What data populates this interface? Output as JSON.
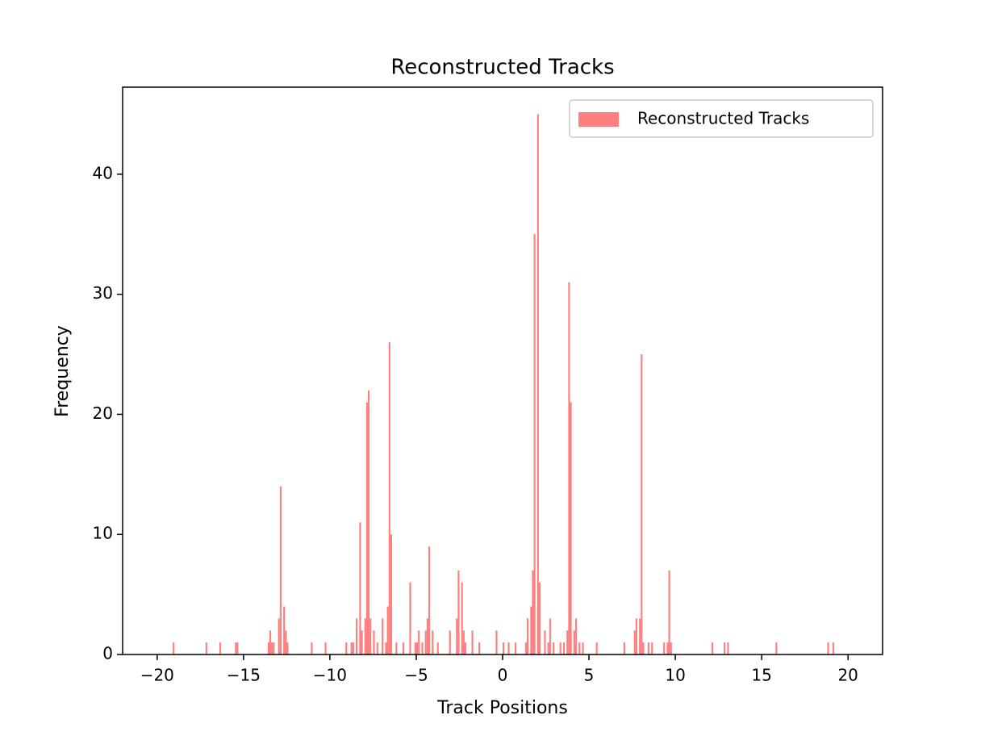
{
  "chart_data": {
    "type": "histogram",
    "title": "Reconstructed Tracks",
    "x_label": "Track Positions",
    "y_label": "Frequency",
    "series": [
      {
        "name": "Reconstructed Tracks",
        "color": "#ff7f7f",
        "bins": [
          -20,
          -19.9,
          -19.8,
          -19.7,
          -19.6,
          -19.5,
          -19.4,
          -19.3,
          -19.2,
          -19.1,
          -19,
          -18.9,
          -18.8,
          -18.7,
          -18.6,
          -18.5,
          -18.4,
          -18.3,
          -18.2,
          -18.1,
          -18,
          -17.9,
          -17.8,
          -17.7,
          -17.6,
          -17.5,
          -17.4,
          -17.3,
          -17.2,
          -17.1,
          -17,
          -16.9,
          -16.8,
          -16.7,
          -16.6,
          -16.5,
          -16.4,
          -16.3,
          -16.2,
          -16.1,
          -16,
          -15.9,
          -15.8,
          -15.7,
          -15.6,
          -15.5,
          -15.4,
          -15.3,
          -15.2,
          -15.1,
          -15,
          -14.9,
          -14.8,
          -14.7,
          -14.6,
          -14.5,
          -14.4,
          -14.3,
          -14.2,
          -14.1,
          -14,
          -13.9,
          -13.8,
          -13.7,
          -13.6,
          -13.5,
          -13.4,
          -13.3,
          -13.2,
          -13.1,
          -13,
          -12.9,
          -12.8,
          -12.7,
          -12.6,
          -12.5,
          -12.4,
          -12.3,
          -12.2,
          -12.1,
          -12,
          -11.9,
          -11.8,
          -11.7,
          -11.6,
          -11.5,
          -11.4,
          -11.3,
          -11.2,
          -11.1,
          -11,
          -10.9,
          -10.8,
          -10.7,
          -10.6,
          -10.5,
          -10.4,
          -10.3,
          -10.2,
          -10.1,
          -10,
          -9.9,
          -9.8,
          -9.7,
          -9.6,
          -9.5,
          -9.4,
          -9.3,
          -9.2,
          -9.1,
          -9,
          -8.9,
          -8.8,
          -8.7,
          -8.6,
          -8.5,
          -8.4,
          -8.3,
          -8.2,
          -8.1,
          -8,
          -7.9,
          -7.8,
          -7.7,
          -7.6,
          -7.5,
          -7.4,
          -7.3,
          -7.2,
          -7.1,
          -7,
          -6.9,
          -6.8,
          -6.7,
          -6.6,
          -6.5,
          -6.4,
          -6.3,
          -6.2,
          -6.1,
          -6,
          -5.9,
          -5.8,
          -5.7,
          -5.6,
          -5.5,
          -5.4,
          -5.3,
          -5.2,
          -5.1,
          -5,
          -4.9,
          -4.8,
          -4.7,
          -4.6,
          -4.5,
          -4.4,
          -4.3,
          -4.2,
          -4.1,
          -4,
          -3.9,
          -3.8,
          -3.7,
          -3.6,
          -3.5,
          -3.4,
          -3.3,
          -3.2,
          -3.1,
          -3,
          -2.9,
          -2.8,
          -2.7,
          -2.6,
          -2.5,
          -2.4,
          -2.3,
          -2.2,
          -2.1,
          -2,
          -1.9,
          -1.8,
          -1.7,
          -1.6,
          -1.5,
          -1.4,
          -1.3,
          -1.2,
          -1.1,
          -1,
          -0.9,
          -0.8,
          -0.7,
          -0.6,
          -0.5,
          -0.4,
          -0.3,
          -0.2,
          -0.1,
          0,
          0.1,
          0.2,
          0.3,
          0.4,
          0.5,
          0.6,
          0.7,
          0.8,
          0.9,
          1,
          1.1,
          1.2,
          1.3,
          1.4,
          1.5,
          1.6,
          1.7,
          1.8,
          1.9,
          2,
          2.1,
          2.2,
          2.3,
          2.4,
          2.5,
          2.6,
          2.7,
          2.8,
          2.9,
          3,
          3.1,
          3.2,
          3.3,
          3.4,
          3.5,
          3.6,
          3.7,
          3.8,
          3.9,
          4,
          4.1,
          4.2,
          4.3,
          4.4,
          4.5,
          4.6,
          4.7,
          4.8,
          4.9,
          5,
          5.1,
          5.2,
          5.3,
          5.4,
          5.5,
          5.6,
          5.7,
          5.8,
          5.9,
          6,
          6.1,
          6.2,
          6.3,
          6.4,
          6.5,
          6.6,
          6.7,
          6.8,
          6.9,
          7,
          7.1,
          7.2,
          7.3,
          7.4,
          7.5,
          7.6,
          7.7,
          7.8,
          7.9,
          8,
          8.1,
          8.2,
          8.3,
          8.4,
          8.5,
          8.6,
          8.7,
          8.8,
          8.9,
          9,
          9.1,
          9.2,
          9.3,
          9.4,
          9.5,
          9.6,
          9.7,
          9.8,
          9.9,
          10,
          10.1,
          10.2,
          10.3,
          10.4,
          10.5,
          10.6,
          10.7,
          10.8,
          10.9,
          11,
          11.1,
          11.2,
          11.3,
          11.4,
          11.5,
          11.6,
          11.7,
          11.8,
          11.9,
          12,
          12.1,
          12.2,
          12.3,
          12.4,
          12.5,
          12.6,
          12.7,
          12.8,
          12.9,
          13,
          13.1,
          13.2,
          13.3,
          13.4,
          13.5,
          13.6,
          13.7,
          13.8,
          13.9,
          14,
          14.1,
          14.2,
          14.3,
          14.4,
          14.5,
          14.6,
          14.7,
          14.8,
          14.9,
          15,
          15.1,
          15.2,
          15.3,
          15.4,
          15.5,
          15.6,
          15.7,
          15.8,
          15.9,
          16,
          16.1,
          16.2,
          16.3,
          16.4,
          16.5,
          16.6,
          16.7,
          16.8,
          16.9,
          17,
          17.1,
          17.2,
          17.3,
          17.4,
          17.5,
          17.6,
          17.7,
          17.8,
          17.9,
          18,
          18.1,
          18.2,
          18.3,
          18.4,
          18.5,
          18.6,
          18.7,
          18.8,
          18.9,
          19,
          19.1,
          19.2,
          19.3,
          19.4,
          19.5,
          19.6,
          19.7,
          19.8,
          19.9,
          20
        ],
        "values": [
          0,
          0,
          0,
          0,
          0,
          0,
          0,
          0,
          0,
          1,
          0,
          0,
          0,
          0,
          0,
          0,
          0,
          0,
          0,
          0,
          0,
          0,
          0,
          0,
          0,
          0,
          0,
          0,
          1,
          0,
          0,
          0,
          0,
          0,
          0,
          0,
          1,
          0,
          0,
          0,
          0,
          0,
          0,
          0,
          0,
          1,
          1,
          0,
          0,
          0,
          0,
          0,
          0,
          0,
          0,
          0,
          0,
          0,
          0,
          0,
          0,
          0,
          0,
          0,
          1,
          2,
          1,
          1,
          0,
          0,
          3,
          14,
          0,
          4,
          2,
          1,
          0,
          0,
          0,
          0,
          0,
          0,
          0,
          0,
          0,
          0,
          0,
          0,
          0,
          1,
          0,
          0,
          0,
          0,
          0,
          0,
          0,
          1,
          0,
          0,
          0,
          0,
          0,
          0,
          0,
          0,
          0,
          0,
          0,
          1,
          0,
          0,
          1,
          1,
          0,
          3,
          0,
          11,
          2,
          0,
          3,
          21,
          22,
          3,
          0,
          2,
          0,
          1,
          0,
          0,
          3,
          0,
          1,
          4,
          26,
          10,
          0,
          0,
          1,
          0,
          0,
          0,
          1,
          0,
          0,
          0,
          6,
          0,
          0,
          1,
          1,
          2,
          0,
          1,
          0,
          2,
          3,
          9,
          0,
          2,
          0,
          0,
          1,
          0,
          0,
          0,
          0,
          0,
          0,
          2,
          0,
          0,
          0,
          3,
          7,
          0,
          6,
          2,
          1,
          0,
          0,
          0,
          2,
          0,
          0,
          0,
          1,
          0,
          0,
          0,
          0,
          0,
          0,
          0,
          0,
          0,
          2,
          0,
          0,
          0,
          1,
          0,
          0,
          1,
          0,
          0,
          0,
          1,
          0,
          0,
          0,
          0,
          0,
          1,
          3,
          0,
          4,
          7,
          35,
          0,
          45,
          6,
          0,
          0,
          2,
          0,
          1,
          3,
          0,
          1,
          0,
          0,
          0,
          1,
          0,
          1,
          0,
          2,
          31,
          21,
          0,
          2,
          3,
          0,
          1,
          0,
          1,
          0,
          0,
          0,
          0,
          0,
          0,
          0,
          1,
          0,
          0,
          0,
          0,
          0,
          0,
          0,
          0,
          0,
          0,
          0,
          0,
          0,
          0,
          0,
          1,
          0,
          0,
          0,
          0,
          0,
          2,
          3,
          0,
          3,
          25,
          1,
          0,
          0,
          1,
          0,
          1,
          0,
          0,
          0,
          0,
          0,
          0,
          1,
          0,
          1,
          7,
          1,
          0,
          0,
          0,
          0,
          0,
          0,
          0,
          0,
          0,
          0,
          0,
          0,
          0,
          0,
          0,
          0,
          0,
          0,
          0,
          0,
          0,
          0,
          0,
          1,
          0,
          0,
          0,
          0,
          0,
          0,
          1,
          0,
          1,
          0,
          0,
          0,
          0,
          0,
          0,
          0,
          0,
          0,
          0,
          0,
          0,
          0,
          0,
          0,
          0,
          0,
          0,
          0,
          0,
          0,
          0,
          0,
          0,
          0,
          0,
          0,
          1,
          0,
          0,
          0,
          0,
          0,
          0,
          0,
          0,
          0,
          0,
          0,
          0,
          0,
          0,
          0,
          0,
          0,
          0,
          0,
          0,
          0,
          0,
          0,
          0,
          0,
          0,
          0,
          0,
          0,
          1,
          0,
          0,
          1,
          0,
          0,
          0,
          0,
          0,
          0,
          0,
          0
        ]
      }
    ],
    "xlim": [
      -22,
      22
    ],
    "ylim": [
      0,
      47.25
    ],
    "xticks": [
      {
        "value": -20,
        "label": "−20"
      },
      {
        "value": -15,
        "label": "−15"
      },
      {
        "value": -10,
        "label": "−10"
      },
      {
        "value": -5,
        "label": "−5"
      },
      0,
      5,
      10,
      15,
      20
    ],
    "yticks": [
      0,
      10,
      20,
      30,
      40
    ],
    "legend": "upper right"
  }
}
